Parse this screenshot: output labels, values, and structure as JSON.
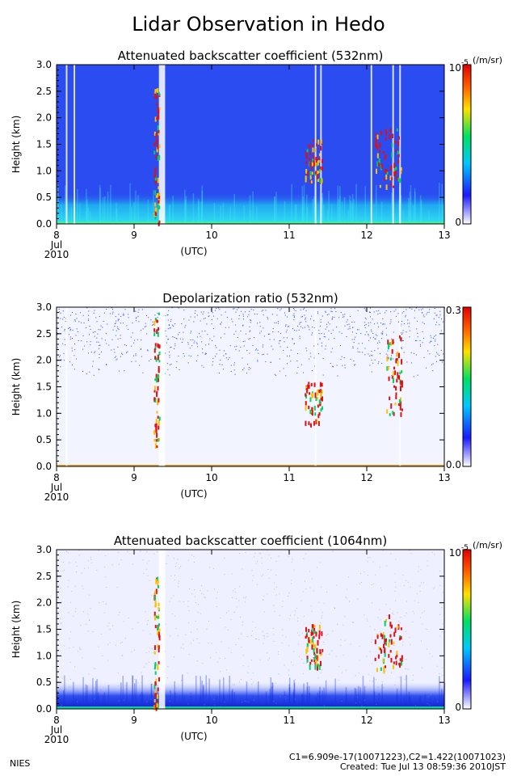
{
  "page": {
    "title": "Lidar Observation in Hedo",
    "footer_left": "NIES",
    "footer_line1": "C1=6.909e-17(10071223),C2=1.422(10071023)",
    "footer_line2": "Created: Tue Jul 13 08:59:36 2010JST"
  },
  "colors": {
    "background": "#ffffff",
    "cloud_strong": "#e01010",
    "scale": [
      "#ffffff",
      "#1a1aff",
      "#00c8ff",
      "#00e060",
      "#ffe000",
      "#ff6000",
      "#e00000"
    ]
  },
  "chart_data": [
    {
      "type": "heatmap",
      "id": "backscatter532",
      "title": "Attenuated backscatter coefficient (532nm)",
      "xlabel": "(UTC)",
      "ylabel": "Height (km)",
      "x_ticks": [
        "8",
        "9",
        "10",
        "11",
        "12",
        "13"
      ],
      "x_date_label": [
        "Jul",
        "2010"
      ],
      "y_ticks": [
        "0.0",
        "0.5",
        "1.0",
        "1.5",
        "2.0",
        "2.5",
        "3.0"
      ],
      "xlim": [
        8,
        13
      ],
      "ylim": [
        0,
        3.0
      ],
      "colorbar": {
        "unit": "(/m/sr)",
        "max_label": "10",
        "max_exponent": "-5",
        "min_label": "0"
      },
      "background_color": "#2a4cf0",
      "boundary_layer_top_km": 0.6,
      "boundary_color": "#30d0f0",
      "gaps": [
        [
          8.12,
          8.14
        ],
        [
          8.22,
          8.24
        ],
        [
          9.32,
          9.4
        ],
        [
          11.33,
          11.35
        ],
        [
          11.4,
          11.42
        ],
        [
          12.05,
          12.07
        ],
        [
          12.33,
          12.35
        ],
        [
          12.42,
          12.44
        ]
      ],
      "cloud_events": [
        {
          "x": [
            9.25,
            9.32
          ],
          "y": [
            0.0,
            2.6
          ]
        },
        {
          "x": [
            11.2,
            11.42
          ],
          "y": [
            0.8,
            1.6
          ]
        },
        {
          "x": [
            12.1,
            12.45
          ],
          "y": [
            0.7,
            1.8
          ]
        }
      ]
    },
    {
      "type": "heatmap",
      "id": "depol532",
      "title": "Depolarization ratio (532nm)",
      "xlabel": "(UTC)",
      "ylabel": "Height (km)",
      "x_ticks": [
        "8",
        "9",
        "10",
        "11",
        "12",
        "13"
      ],
      "x_date_label": [
        "Jul",
        "2010"
      ],
      "y_ticks": [
        "0.0",
        "0.5",
        "1.0",
        "1.5",
        "2.0",
        "2.5",
        "3.0"
      ],
      "xlim": [
        8,
        13
      ],
      "ylim": [
        0,
        3.0
      ],
      "colorbar": {
        "unit": "",
        "max_label": "0.3",
        "max_exponent": "",
        "min_label": "0.0"
      },
      "background_color": "#f2f4ff",
      "noise_start_km": 1.7,
      "gaps": [
        [
          8.12,
          8.14
        ],
        [
          9.32,
          9.4
        ],
        [
          11.33,
          11.35
        ],
        [
          12.42,
          12.44
        ]
      ],
      "cloud_events": [
        {
          "x": [
            9.25,
            9.32
          ],
          "y": [
            0.3,
            2.9
          ]
        },
        {
          "x": [
            11.2,
            11.42
          ],
          "y": [
            0.8,
            1.6
          ]
        },
        {
          "x": [
            12.25,
            12.45
          ],
          "y": [
            1.0,
            2.5
          ]
        }
      ]
    },
    {
      "type": "heatmap",
      "id": "backscatter1064",
      "title": "Attenuated backscatter coefficient (1064nm)",
      "xlabel": "(UTC)",
      "ylabel": "Height (km)",
      "x_ticks": [
        "8",
        "9",
        "10",
        "11",
        "12",
        "13"
      ],
      "x_date_label": [
        "Jul",
        "2010"
      ],
      "y_ticks": [
        "0.0",
        "0.5",
        "1.0",
        "1.5",
        "2.0",
        "2.5",
        "3.0"
      ],
      "xlim": [
        8,
        13
      ],
      "ylim": [
        0,
        3.0
      ],
      "colorbar": {
        "unit": "(/m/sr)",
        "max_label": "10",
        "max_exponent": "-5",
        "min_label": "0"
      },
      "background_color": "#eef0ff",
      "boundary_layer_top_km": 0.5,
      "boundary_color": "#2038e8",
      "gaps": [
        [
          9.32,
          9.4
        ]
      ],
      "cloud_events": [
        {
          "x": [
            9.25,
            9.32
          ],
          "y": [
            0.0,
            2.6
          ]
        },
        {
          "x": [
            11.2,
            11.42
          ],
          "y": [
            0.8,
            1.6
          ]
        },
        {
          "x": [
            12.1,
            12.45
          ],
          "y": [
            0.7,
            1.8
          ]
        }
      ]
    }
  ]
}
